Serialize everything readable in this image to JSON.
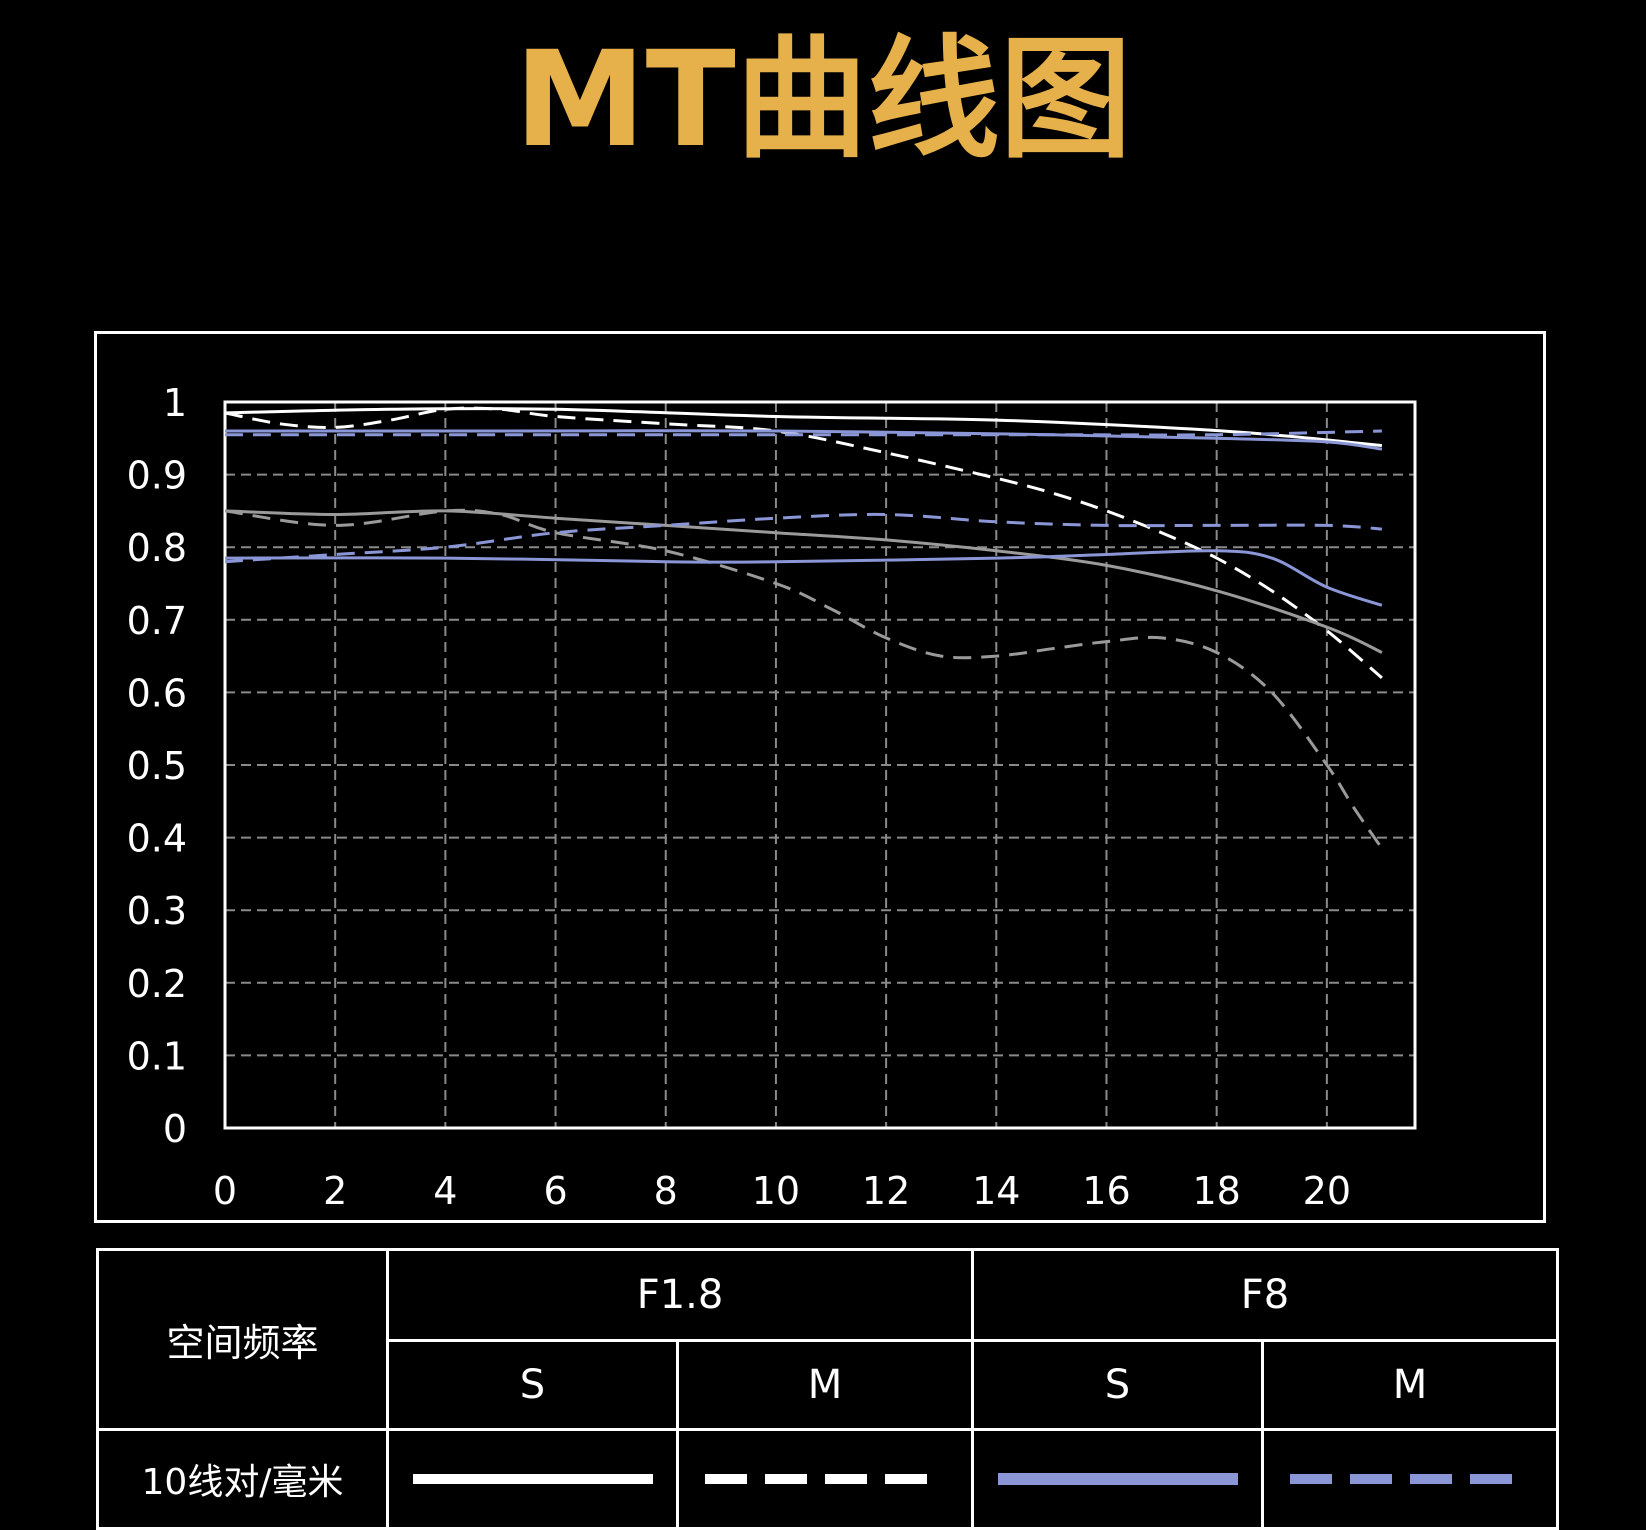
{
  "title": "MT曲线图",
  "colors": {
    "background": "#000000",
    "title": "#e6b04a",
    "frame": "#ffffff",
    "grid": "#8a8a8a",
    "F1.8_S": "#ffffff",
    "F1.8_M": "#ffffff",
    "F8_S": "#8a96d6",
    "F8_M": "#8a96d6",
    "30lp": "#9a9a9a"
  },
  "chart_data": {
    "type": "line",
    "x_ticks": [
      "0",
      "2",
      "4",
      "6",
      "8",
      "10",
      "12",
      "14",
      "16",
      "18",
      "20"
    ],
    "y_ticks": [
      "0",
      "0.1",
      "0.2",
      "0.3",
      "0.4",
      "0.5",
      "0.6",
      "0.7",
      "0.8",
      "0.9",
      "1"
    ],
    "xlim": [
      0,
      21.6
    ],
    "ylim": [
      0,
      1
    ],
    "grid": true,
    "series": [
      {
        "key": "10lp_F1.8_S",
        "color": "#ffffff",
        "dash": false,
        "points": [
          [
            0,
            0.985
          ],
          [
            3,
            0.99
          ],
          [
            6,
            0.99
          ],
          [
            10,
            0.98
          ],
          [
            14,
            0.975
          ],
          [
            17,
            0.965
          ],
          [
            19,
            0.955
          ],
          [
            21,
            0.94
          ]
        ]
      },
      {
        "key": "10lp_F1.8_M",
        "color": "#ffffff",
        "dash": true,
        "points": [
          [
            0,
            0.985
          ],
          [
            1,
            0.97
          ],
          [
            2,
            0.965
          ],
          [
            3,
            0.975
          ],
          [
            4,
            0.99
          ],
          [
            5,
            0.99
          ],
          [
            6,
            0.98
          ],
          [
            8,
            0.97
          ],
          [
            10,
            0.96
          ],
          [
            12,
            0.93
          ],
          [
            14,
            0.895
          ],
          [
            15,
            0.875
          ],
          [
            16,
            0.85
          ],
          [
            17,
            0.82
          ],
          [
            18,
            0.785
          ],
          [
            19,
            0.74
          ],
          [
            20,
            0.685
          ],
          [
            21,
            0.62
          ]
        ]
      },
      {
        "key": "10lp_F8_S",
        "color": "#8a96d6",
        "dash": false,
        "points": [
          [
            0,
            0.96
          ],
          [
            5,
            0.96
          ],
          [
            10,
            0.96
          ],
          [
            15,
            0.955
          ],
          [
            18,
            0.95
          ],
          [
            20,
            0.945
          ],
          [
            21,
            0.935
          ]
        ]
      },
      {
        "key": "10lp_F8_M",
        "color": "#8a96d6",
        "dash": true,
        "points": [
          [
            0,
            0.955
          ],
          [
            5,
            0.955
          ],
          [
            10,
            0.955
          ],
          [
            15,
            0.955
          ],
          [
            18,
            0.955
          ],
          [
            21,
            0.96
          ]
        ]
      },
      {
        "key": "30lp_F1.8_S",
        "color": "#9a9a9a",
        "dash": false,
        "points": [
          [
            0,
            0.85
          ],
          [
            2,
            0.845
          ],
          [
            4,
            0.85
          ],
          [
            6,
            0.84
          ],
          [
            8,
            0.83
          ],
          [
            10,
            0.82
          ],
          [
            12,
            0.81
          ],
          [
            14,
            0.795
          ],
          [
            16,
            0.775
          ],
          [
            18,
            0.74
          ],
          [
            20,
            0.69
          ],
          [
            21,
            0.655
          ]
        ]
      },
      {
        "key": "30lp_F1.8_M",
        "color": "#9a9a9a",
        "dash": true,
        "points": [
          [
            0,
            0.85
          ],
          [
            2,
            0.83
          ],
          [
            4,
            0.85
          ],
          [
            5,
            0.845
          ],
          [
            6,
            0.82
          ],
          [
            8,
            0.795
          ],
          [
            10,
            0.75
          ],
          [
            11,
            0.715
          ],
          [
            12,
            0.675
          ],
          [
            13,
            0.65
          ],
          [
            14,
            0.65
          ],
          [
            15,
            0.66
          ],
          [
            16,
            0.67
          ],
          [
            17,
            0.675
          ],
          [
            18,
            0.655
          ],
          [
            19,
            0.6
          ],
          [
            20,
            0.5
          ],
          [
            20.5,
            0.44
          ],
          [
            21,
            0.385
          ]
        ]
      },
      {
        "key": "30lp_F8_S",
        "color": "#8a96d6",
        "dash": false,
        "points": [
          [
            0,
            0.785
          ],
          [
            4,
            0.785
          ],
          [
            8,
            0.78
          ],
          [
            10,
            0.78
          ],
          [
            14,
            0.785
          ],
          [
            16,
            0.79
          ],
          [
            18,
            0.795
          ],
          [
            19,
            0.785
          ],
          [
            20,
            0.745
          ],
          [
            21,
            0.72
          ]
        ]
      },
      {
        "key": "30lp_F8_M",
        "color": "#8a96d6",
        "dash": true,
        "points": [
          [
            0,
            0.78
          ],
          [
            2,
            0.79
          ],
          [
            4,
            0.8
          ],
          [
            6,
            0.82
          ],
          [
            8,
            0.83
          ],
          [
            10,
            0.84
          ],
          [
            12,
            0.845
          ],
          [
            14,
            0.835
          ],
          [
            16,
            0.83
          ],
          [
            18,
            0.83
          ],
          [
            20,
            0.83
          ],
          [
            21,
            0.825
          ]
        ]
      }
    ]
  },
  "legend_table": {
    "row_header": "空间频率",
    "f18": "F1.8",
    "f8": "F8",
    "s1": "S",
    "m1": "M",
    "s2": "S",
    "m2": "M",
    "row1_label": "10线对/毫米"
  }
}
